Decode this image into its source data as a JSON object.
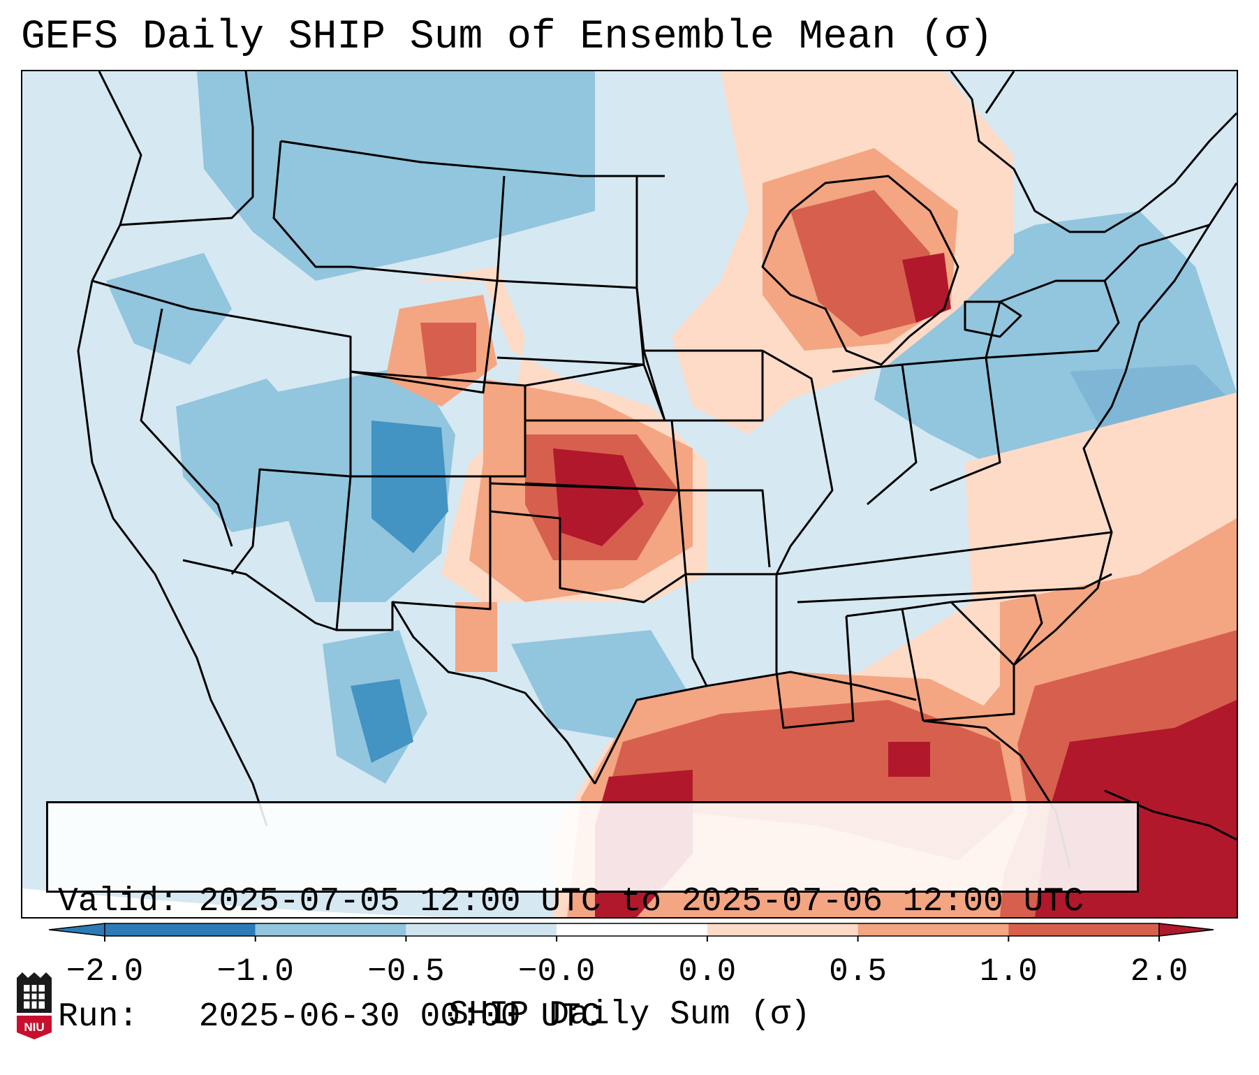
{
  "title": "GEFS Daily SHIP Sum of Ensemble Mean (σ)",
  "info": {
    "valid_label": "Valid:",
    "valid_value": "2025-07-05 12:00 UTC to 2025-07-06 12:00 UTC",
    "run_label": "Run:",
    "run_value": "2025-06-30 00:00 UTC"
  },
  "colorbar": {
    "label": "SHIP Daily Sum (σ)",
    "ticks": [
      "−2.0",
      "−1.0",
      "−0.5",
      "−0.0",
      "0.0",
      "0.5",
      "1.0",
      "2.0"
    ],
    "colors": [
      "#2c7bb6",
      "#92c5de",
      "#d1e5f0",
      "#ffffff",
      "#fddbc7",
      "#f4a582",
      "#d6604d",
      "#b2182b"
    ],
    "extend": "both"
  },
  "logo": {
    "text": "NIU",
    "icon": "university-seal-icon"
  },
  "map": {
    "colors": {
      "background": "#d6e8f2",
      "dark_red": "#b2182b",
      "red": "#d6604d",
      "salmon": "#f4a582",
      "peach": "#fddbc7",
      "light_blue": "#d1e5f0",
      "blue": "#92c5de",
      "dark_blue": "#4393c3"
    }
  }
}
